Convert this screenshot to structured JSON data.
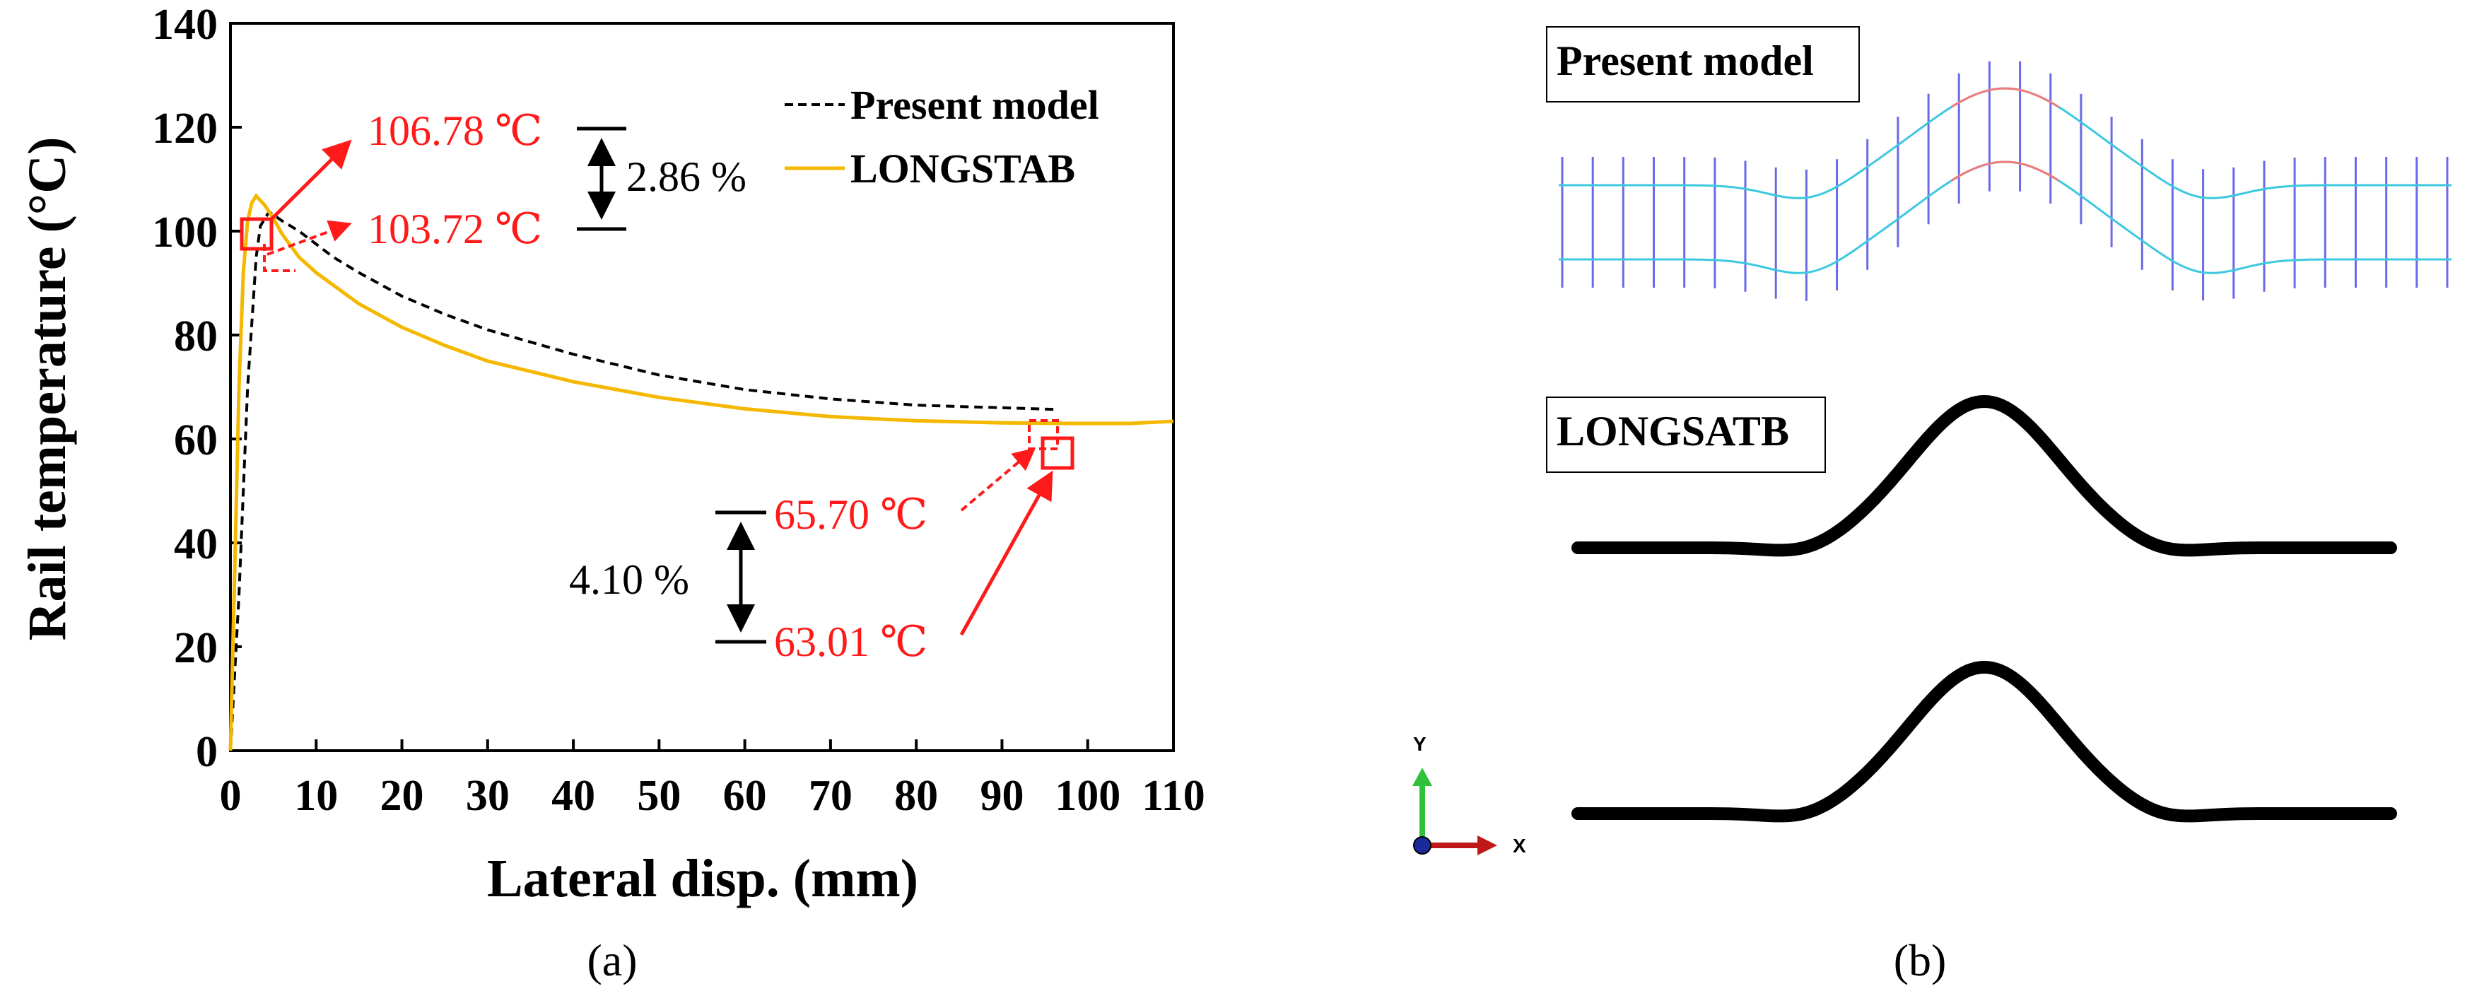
{
  "chart_data": {
    "type": "line",
    "xlabel": "Lateral disp. (mm)",
    "ylabel": "Rail temperature (°C)",
    "xlim": [
      0,
      110
    ],
    "ylim": [
      0,
      140
    ],
    "x_ticks": [
      0,
      10,
      20,
      30,
      40,
      50,
      60,
      70,
      80,
      90,
      100,
      110
    ],
    "x_tick_labels": [
      "0",
      "10",
      "20",
      "30",
      "40",
      "50",
      "60",
      "70",
      "80",
      "90",
      "100",
      "110"
    ],
    "y_ticks": [
      0,
      20,
      40,
      60,
      80,
      100,
      120,
      140
    ],
    "y_tick_labels": [
      "0",
      "20",
      "40",
      "60",
      "80",
      "100",
      "120",
      "140"
    ],
    "grid": false,
    "legend_position": "top-right",
    "series": [
      {
        "name": "Present model",
        "style": "dashed",
        "color": "#000000",
        "x": [
          0,
          1,
          2,
          3,
          3.5,
          4.5,
          6,
          8,
          10,
          12,
          15,
          20,
          25,
          30,
          40,
          50,
          60,
          70,
          80,
          90,
          96
        ],
        "y": [
          0,
          30,
          70,
          95,
          101,
          103.72,
          102,
          100,
          97.5,
          95,
          92,
          87.5,
          84,
          81,
          76.3,
          72.3,
          69.5,
          67.7,
          66.5,
          66.0,
          65.7
        ]
      },
      {
        "name": "LONGSTAB",
        "style": "solid",
        "color": "#f5b800",
        "x": [
          0,
          0.5,
          1,
          1.5,
          2,
          2.5,
          3,
          4,
          5,
          6,
          8,
          10,
          15,
          20,
          25,
          30,
          40,
          50,
          60,
          70,
          80,
          90,
          96,
          100,
          105,
          110
        ],
        "y": [
          0,
          35,
          70,
          92,
          102,
          105.5,
          106.78,
          105,
          102.5,
          99.5,
          95,
          92,
          86,
          81.5,
          78,
          75,
          71,
          68,
          65.8,
          64.3,
          63.5,
          63.1,
          63.01,
          63.0,
          63.0,
          63.4
        ]
      }
    ],
    "annotations": {
      "lsb_peak": "106.78 ℃",
      "pm_peak": "103.72 ℃",
      "peak_diff": "2.86 %",
      "pm_end": "65.70 ℃",
      "lsb_end": "63.01 ℃",
      "end_diff": "4.10 %"
    },
    "caption": "(a)"
  },
  "panel_b": {
    "present_label": "Present model",
    "longstab_label": "LONGSATB",
    "axis_y_label": "Y",
    "axis_x_label": "X",
    "caption": "(b)",
    "colors": {
      "mesh_line": "#3cc8e0",
      "sleeper": "#6a6ae8",
      "peak": "#f07a7a",
      "axis_y": "#2fc23a",
      "axis_x": "#c01818",
      "origin": "#1a2a9a"
    }
  }
}
